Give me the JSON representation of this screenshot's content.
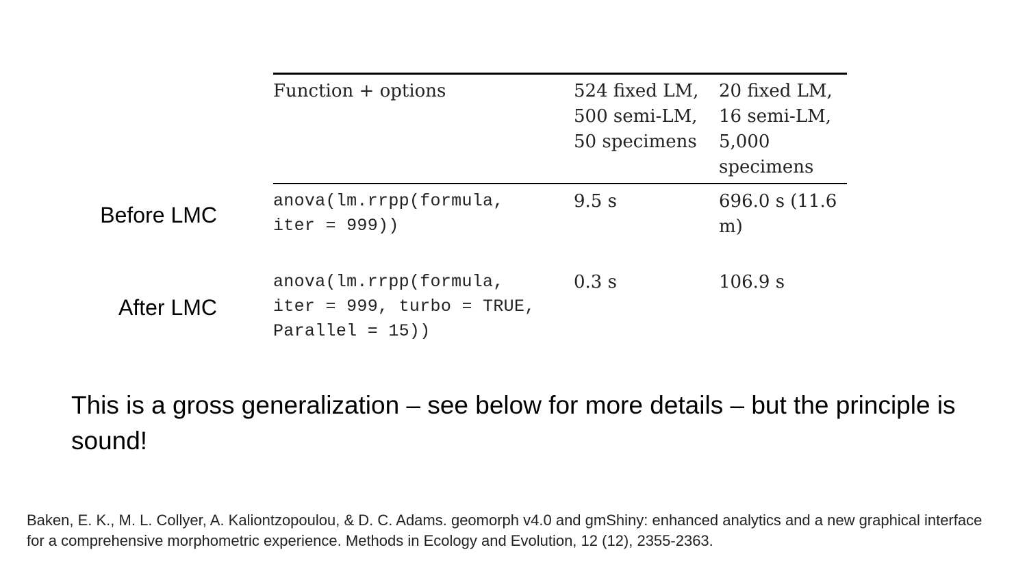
{
  "table": {
    "header": {
      "function": "Function + options",
      "col1": "524 fixed LM,\n500 semi-LM,\n50 specimens",
      "col2": "20 fixed LM,\n16 semi-LM,\n5,000\nspecimens"
    },
    "rows": [
      {
        "label": "Before LMC",
        "function": "anova(lm.rrpp(formula,\niter = 999))",
        "col1": "9.5 s",
        "col2": "696.0 s (11.6\nm)"
      },
      {
        "label": "After LMC",
        "function": "anova(lm.rrpp(formula,\niter = 999, turbo = TRUE,\nParallel = 15))",
        "col1": "0.3 s",
        "col2": "106.9 s"
      }
    ]
  },
  "statement": "This is a gross generalization – see below for more details – but the principle is sound!",
  "citation": "Baken, E. K., M. L. Collyer, A. Kaliontzopoulou, & D. C. Adams. geomorph v4.0 and gmShiny: enhanced analytics and a new graphical interface for a comprehensive morphometric experience. Methods in Ecology and Evolution, 12 (12), 2355-2363."
}
